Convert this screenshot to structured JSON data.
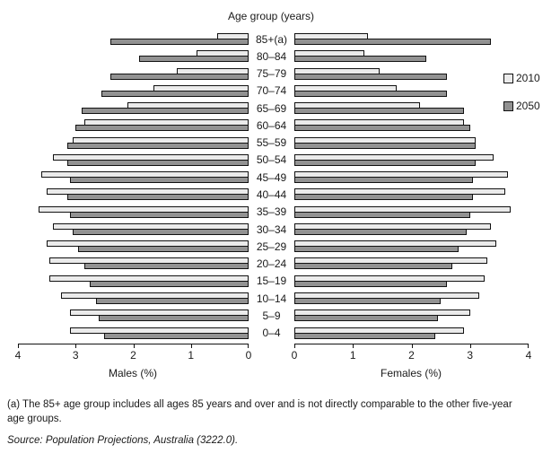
{
  "title": "Age group (years)",
  "legend": {
    "items": [
      {
        "label": "2010",
        "color": "#ebebeb"
      },
      {
        "label": "2050",
        "color": "#929292"
      }
    ]
  },
  "axes": {
    "male": {
      "title": "Males (%)",
      "ticks": [
        "4",
        "3",
        "2",
        "1",
        "0"
      ]
    },
    "female": {
      "title": "Females (%)",
      "ticks": [
        "0",
        "1",
        "2",
        "3",
        "4"
      ]
    }
  },
  "footnote": "(a) The 85+ age group includes all ages 85 years and over and is not directly comparable to the other five-year age groups.",
  "source": "Source: Population Projections, Australia (3222.0).",
  "chart_data": {
    "type": "bar",
    "subtype": "population-pyramid",
    "title": "Age group (years)",
    "xlabel_left": "Males (%)",
    "xlabel_right": "Females (%)",
    "xlim": [
      0,
      4
    ],
    "grid": false,
    "legend_position": "right",
    "colors": {
      "2010": "#ebebeb",
      "2050": "#929292"
    },
    "categories": [
      "85+(a)",
      "80–84",
      "75–79",
      "70–74",
      "65–69",
      "60–64",
      "55–59",
      "50–54",
      "45–49",
      "40–44",
      "35–39",
      "30–34",
      "25–29",
      "20–24",
      "15–19",
      "10–14",
      "5–9",
      "0–4"
    ],
    "series": [
      {
        "side": "male",
        "name": "2010",
        "values": [
          0.55,
          0.9,
          1.25,
          1.65,
          2.1,
          2.85,
          3.05,
          3.4,
          3.6,
          3.5,
          3.65,
          3.4,
          3.5,
          3.45,
          3.45,
          3.25,
          3.1,
          3.1
        ]
      },
      {
        "side": "male",
        "name": "2050",
        "values": [
          2.4,
          1.9,
          2.4,
          2.55,
          2.9,
          3.0,
          3.15,
          3.15,
          3.1,
          3.15,
          3.1,
          3.05,
          2.95,
          2.85,
          2.75,
          2.65,
          2.6,
          2.5
        ]
      },
      {
        "side": "female",
        "name": "2010",
        "values": [
          1.25,
          1.2,
          1.45,
          1.75,
          2.15,
          2.9,
          3.1,
          3.4,
          3.65,
          3.6,
          3.7,
          3.35,
          3.45,
          3.3,
          3.25,
          3.15,
          3.0,
          2.9
        ]
      },
      {
        "side": "female",
        "name": "2050",
        "values": [
          3.35,
          2.25,
          2.6,
          2.6,
          2.9,
          3.0,
          3.1,
          3.1,
          3.05,
          3.05,
          3.0,
          2.95,
          2.8,
          2.7,
          2.6,
          2.5,
          2.45,
          2.4
        ]
      }
    ]
  }
}
